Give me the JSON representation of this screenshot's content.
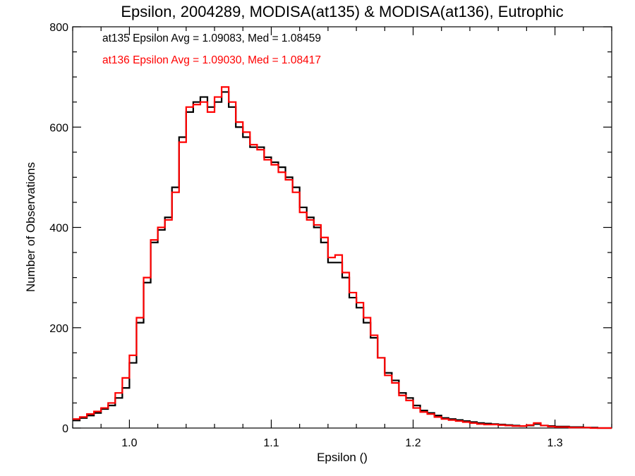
{
  "chart_data": {
    "type": "step",
    "title": "Epsilon, 2004289, MODISA(at135) & MODISA(at136), Eutrophic",
    "xlabel": "Epsilon ()",
    "ylabel": "Number of Observations",
    "xlim": [
      0.96,
      1.34
    ],
    "ylim": [
      0,
      800
    ],
    "xticks": [
      1.0,
      1.1,
      1.2,
      1.3
    ],
    "xtick_labels": [
      "1.0",
      "1.1",
      "1.2",
      "1.3"
    ],
    "yticks": [
      0,
      200,
      400,
      600,
      800
    ],
    "ytick_labels": [
      "0",
      "200",
      "400",
      "600",
      "800"
    ],
    "grid": false,
    "annotations": [
      {
        "text": "at135 Epsilon Avg = 1.09083, Med = 1.08459",
        "color": "#000000"
      },
      {
        "text": "at136 Epsilon Avg = 1.09030, Med = 1.08417",
        "color": "#ff0000"
      }
    ],
    "series": [
      {
        "color": "#000000",
        "x": [
          0.96,
          0.965,
          0.97,
          0.975,
          0.98,
          0.985,
          0.99,
          0.995,
          1.0,
          1.005,
          1.01,
          1.015,
          1.02,
          1.025,
          1.03,
          1.035,
          1.04,
          1.045,
          1.05,
          1.055,
          1.06,
          1.065,
          1.07,
          1.075,
          1.08,
          1.085,
          1.09,
          1.095,
          1.1,
          1.105,
          1.11,
          1.115,
          1.12,
          1.125,
          1.13,
          1.135,
          1.14,
          1.145,
          1.15,
          1.155,
          1.16,
          1.165,
          1.17,
          1.175,
          1.18,
          1.185,
          1.19,
          1.195,
          1.2,
          1.205,
          1.21,
          1.215,
          1.22,
          1.225,
          1.23,
          1.235,
          1.24,
          1.245,
          1.25,
          1.255,
          1.26,
          1.265,
          1.27,
          1.275,
          1.28,
          1.285,
          1.29,
          1.295,
          1.3,
          1.305,
          1.31,
          1.315,
          1.32,
          1.325,
          1.33,
          1.335
        ],
        "y": [
          15,
          20,
          25,
          30,
          38,
          45,
          60,
          80,
          130,
          210,
          290,
          370,
          395,
          420,
          480,
          580,
          630,
          650,
          660,
          640,
          650,
          670,
          640,
          600,
          580,
          560,
          560,
          540,
          530,
          520,
          500,
          480,
          440,
          420,
          400,
          370,
          330,
          330,
          300,
          260,
          240,
          210,
          180,
          140,
          110,
          95,
          70,
          60,
          45,
          35,
          30,
          25,
          20,
          18,
          16,
          14,
          12,
          10,
          9,
          8,
          7,
          6,
          5,
          4,
          5,
          8,
          5,
          4,
          3,
          3,
          2,
          2,
          1,
          1,
          0,
          0
        ]
      },
      {
        "color": "#ff0000",
        "x": [
          0.96,
          0.965,
          0.97,
          0.975,
          0.98,
          0.985,
          0.99,
          0.995,
          1.0,
          1.005,
          1.01,
          1.015,
          1.02,
          1.025,
          1.03,
          1.035,
          1.04,
          1.045,
          1.05,
          1.055,
          1.06,
          1.065,
          1.07,
          1.075,
          1.08,
          1.085,
          1.09,
          1.095,
          1.1,
          1.105,
          1.11,
          1.115,
          1.12,
          1.125,
          1.13,
          1.135,
          1.14,
          1.145,
          1.15,
          1.155,
          1.16,
          1.165,
          1.17,
          1.175,
          1.18,
          1.185,
          1.19,
          1.195,
          1.2,
          1.205,
          1.21,
          1.215,
          1.22,
          1.225,
          1.23,
          1.235,
          1.24,
          1.245,
          1.25,
          1.255,
          1.26,
          1.265,
          1.27,
          1.275,
          1.28,
          1.285,
          1.29,
          1.295,
          1.3,
          1.305,
          1.31,
          1.315,
          1.32,
          1.325,
          1.33,
          1.335
        ],
        "y": [
          18,
          22,
          28,
          33,
          40,
          50,
          70,
          100,
          145,
          220,
          300,
          375,
          400,
          415,
          470,
          570,
          640,
          645,
          650,
          630,
          660,
          680,
          650,
          610,
          590,
          565,
          555,
          535,
          525,
          510,
          495,
          470,
          430,
          415,
          405,
          380,
          340,
          345,
          310,
          270,
          250,
          220,
          185,
          140,
          105,
          90,
          65,
          55,
          40,
          32,
          28,
          22,
          18,
          16,
          14,
          12,
          10,
          8,
          7,
          7,
          6,
          5,
          4,
          4,
          6,
          10,
          5,
          3,
          2,
          2,
          1,
          1,
          1,
          0,
          0,
          0
        ]
      }
    ]
  }
}
